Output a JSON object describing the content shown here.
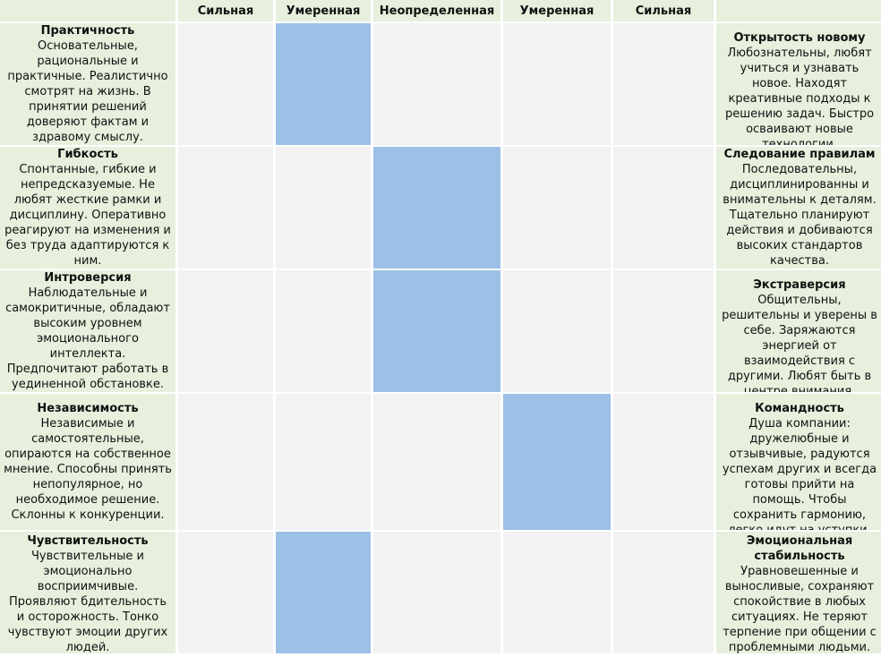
{
  "headers": [
    "",
    "Сильная",
    "Умеренная",
    "Неопределенная",
    "Умеренная",
    "Сильная",
    ""
  ],
  "rows": [
    {
      "left": {
        "name": "Практичность",
        "desc": "Основательные, рациональные и практичные. Реалистично смотрят на жизнь. В принятии решений доверяют фактам и здравому смыслу."
      },
      "right": {
        "name": "Открытость новому",
        "desc": "Любознательны, любят учиться и узнавать новое. Находят креативные подходы к решению задач. Быстро осваивают новые технологии."
      },
      "selected": "Умеренная (слева)"
    },
    {
      "left": {
        "name": "Гибкость",
        "desc": "Спонтанные, гибкие и непредсказуемые. Не любят жесткие рамки и дисциплину. Оперативно реагируют на изменения и без труда адаптируются к ним."
      },
      "right": {
        "name": "Следование правилам",
        "desc": "Последовательны, дисциплинированны и внимательны к деталям. Тщательно планируют действия и добиваются высоких стандартов качества."
      },
      "selected": "Неопределенная"
    },
    {
      "left": {
        "name": "Интроверсия",
        "desc": "Наблюдательные и самокритичные, обладают высоким уровнем эмоционального интеллекта. Предпочитают работать в уединенной обстановке."
      },
      "right": {
        "name": "Экстраверсия",
        "desc": "Общительны, решительны и уверены в себе. Заряжаются энергией от взаимодействия с другими. Любят быть в центре внимания."
      },
      "selected": "Неопределенная"
    },
    {
      "left": {
        "name": "Независимость",
        "desc": "Независимые и самостоятельные, опираются на собственное мнение. Способны принять непопулярное, но необходимое решение. Склонны к конкуренции."
      },
      "right": {
        "name": "Командность",
        "desc": "Душа компании: дружелюбные и отзывчивые, радуются успехам других и всегда готовы прийти на помощь. Чтобы сохранить гармонию, легко идут на уступки."
      },
      "selected": "Умеренная (справа)"
    },
    {
      "left": {
        "name": "Чувствительность",
        "desc": "Чувствительные и эмоционально восприимчивые. Проявляют бдительность и осторожность. Тонко чувствуют эмоции других людей."
      },
      "right": {
        "name": "Эмоциональная стабильность",
        "desc": "Уравновешенные и выносливые, сохраняют спокойствие в любых ситуациях. Не теряют терпение при общении с проблемными людьми."
      },
      "selected": "Умеренная (слева)"
    }
  ],
  "colors": {
    "header_bg": "#e6f0dd",
    "trait_bg": "#e6f0dd",
    "cell_bg": "#f2f2f2",
    "selected_bg": "#9cc0e6"
  }
}
